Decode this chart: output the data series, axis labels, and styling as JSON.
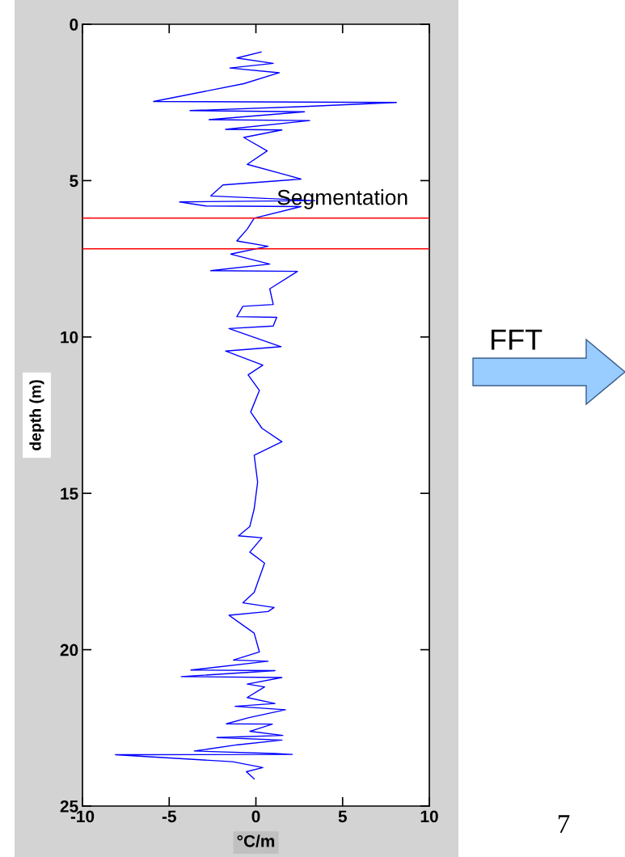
{
  "chart_data": {
    "type": "line",
    "xlabel": "°C/m",
    "ylabel": "depth (m)",
    "xlim": [
      -10,
      10
    ],
    "xticks": [
      -10,
      -5,
      0,
      5,
      10
    ],
    "ylim": [
      25,
      0
    ],
    "yticks": [
      0,
      5,
      10,
      15,
      20,
      25
    ],
    "series": [
      {
        "color": "#0000ff",
        "x": [
          0.3,
          -1.1,
          1.0,
          -1.5,
          1.35,
          -0.7,
          -5.9,
          8.1,
          2.8,
          -3.8,
          2.8,
          -2.7,
          3.1,
          -1.75,
          1.5,
          -0.7,
          0.65,
          -0.5,
          1.75,
          2.6,
          -1.9,
          -2.6,
          3.4,
          -4.4,
          -2.9,
          2.6,
          -0.1,
          -0.5,
          -1.1,
          0.7,
          -1.45,
          0.8,
          -2.6,
          2.4,
          0.8,
          1.0,
          -0.75,
          -1.1,
          1.2,
          1.0,
          -1.55,
          1.45,
          -1.75,
          0.4,
          -0.45,
          0.2,
          -0.3,
          0.35,
          1.5,
          -0.1,
          0.1,
          -0.1,
          -0.35,
          -1.0,
          0.35,
          -0.35,
          0.5,
          -0.1,
          -0.75,
          1.05,
          0.7,
          -1.55,
          -0.1,
          0.2,
          -1.3,
          0.7,
          -3.75,
          1.1,
          -4.3,
          1.5,
          -0.5,
          0.5,
          -0.5,
          1.1,
          -1.2,
          1.7,
          -0.45,
          -1.7,
          0.95,
          -0.35,
          1.55,
          -2.25,
          1.5,
          -1.05,
          -3.55,
          1.05,
          2.1,
          -8.1,
          -1.35,
          0.4,
          -0.55,
          -0.1
        ],
        "values": [
          0.89,
          1.08,
          1.25,
          1.4,
          1.55,
          1.9,
          2.47,
          2.5,
          2.63,
          2.76,
          2.8,
          3.05,
          3.08,
          3.36,
          3.38,
          3.62,
          4.05,
          4.48,
          4.82,
          4.95,
          5.14,
          5.49,
          5.64,
          5.68,
          5.81,
          5.83,
          6.2,
          6.55,
          6.93,
          7.1,
          7.35,
          7.67,
          7.88,
          7.9,
          8.46,
          8.96,
          9.02,
          9.35,
          9.37,
          9.65,
          9.73,
          10.31,
          10.45,
          10.9,
          11.21,
          11.71,
          12.4,
          12.92,
          13.35,
          13.78,
          14.64,
          15.5,
          16.06,
          16.36,
          16.42,
          16.88,
          17.23,
          18.17,
          18.5,
          18.65,
          18.78,
          18.9,
          19.47,
          20.07,
          20.33,
          20.37,
          20.65,
          20.67,
          20.86,
          20.89,
          21.1,
          21.19,
          21.53,
          21.72,
          21.81,
          21.92,
          22.18,
          22.37,
          22.38,
          22.61,
          22.74,
          22.81,
          22.89,
          23.04,
          23.24,
          23.32,
          23.35,
          23.36,
          23.58,
          23.77,
          23.9,
          24.13
        ]
      }
    ],
    "ref_lines": [
      {
        "axis": "y",
        "value": 6.2,
        "label": "Segmentation",
        "color": "#ff0000"
      },
      {
        "axis": "y",
        "value": 7.18,
        "label": null,
        "color": "#ff0000"
      }
    ],
    "annotations": [
      "FFT",
      "7"
    ],
    "grid": false,
    "legend": false
  }
}
